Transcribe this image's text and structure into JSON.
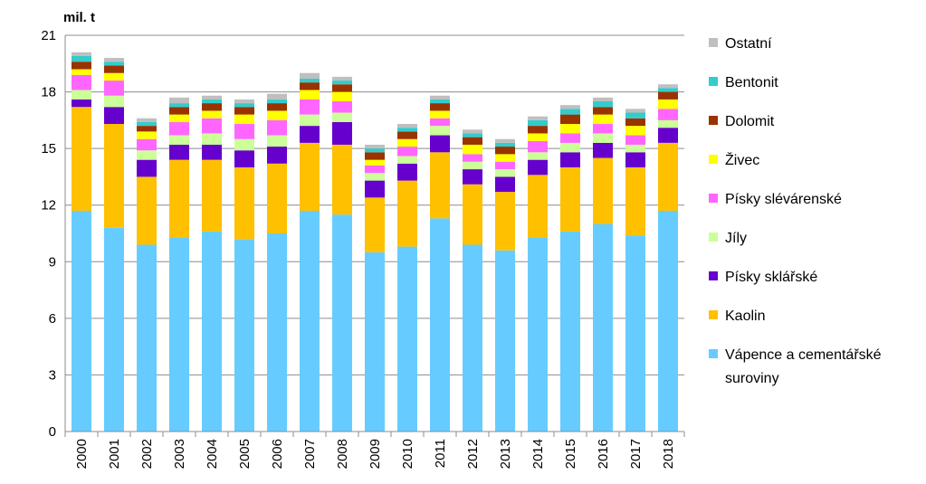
{
  "chart_data": {
    "type": "bar",
    "stacked": true,
    "unit_label": "mil. t",
    "categories": [
      "2000",
      "2001",
      "2002",
      "2003",
      "2004",
      "2005",
      "2006",
      "2007",
      "2008",
      "2009",
      "2010",
      "2011",
      "2012",
      "2013",
      "2014",
      "2015",
      "2016",
      "2017",
      "2018"
    ],
    "ylim": [
      0,
      21
    ],
    "yticks": [
      0,
      3,
      6,
      9,
      12,
      15,
      18,
      21
    ],
    "grid": true,
    "legend_position": "right",
    "series": [
      {
        "name": "Vápence a cementářské suroviny",
        "color": "#66ccff",
        "values": [
          11.7,
          10.8,
          9.9,
          10.3,
          10.6,
          10.2,
          10.5,
          11.7,
          11.5,
          9.5,
          9.8,
          11.3,
          9.9,
          9.6,
          10.3,
          10.6,
          11.0,
          10.4,
          11.7
        ]
      },
      {
        "name": "Kaolin",
        "color": "#ffc000",
        "values": [
          5.5,
          5.5,
          3.6,
          4.1,
          3.8,
          3.8,
          3.7,
          3.6,
          3.7,
          2.9,
          3.5,
          3.5,
          3.2,
          3.1,
          3.3,
          3.4,
          3.5,
          3.6,
          3.6
        ]
      },
      {
        "name": "Písky sklářské",
        "color": "#6600cc",
        "values": [
          0.4,
          0.9,
          0.9,
          0.8,
          0.8,
          0.9,
          0.9,
          0.9,
          1.2,
          0.9,
          0.9,
          0.9,
          0.8,
          0.8,
          0.8,
          0.8,
          0.8,
          0.8,
          0.8
        ]
      },
      {
        "name": "Jíly",
        "color": "#ccff99",
        "values": [
          0.5,
          0.6,
          0.5,
          0.5,
          0.6,
          0.6,
          0.6,
          0.6,
          0.5,
          0.4,
          0.4,
          0.5,
          0.4,
          0.4,
          0.4,
          0.5,
          0.5,
          0.4,
          0.4
        ]
      },
      {
        "name": "Písky slévárenské",
        "color": "#ff66ff",
        "values": [
          0.8,
          0.8,
          0.6,
          0.7,
          0.8,
          0.8,
          0.8,
          0.8,
          0.6,
          0.4,
          0.5,
          0.4,
          0.4,
          0.4,
          0.6,
          0.5,
          0.5,
          0.5,
          0.6
        ]
      },
      {
        "name": "Živec",
        "color": "#ffff00",
        "values": [
          0.3,
          0.4,
          0.4,
          0.4,
          0.4,
          0.5,
          0.5,
          0.5,
          0.5,
          0.3,
          0.4,
          0.4,
          0.5,
          0.4,
          0.4,
          0.5,
          0.5,
          0.5,
          0.5
        ]
      },
      {
        "name": "Dolomit",
        "color": "#993300",
        "values": [
          0.4,
          0.4,
          0.3,
          0.4,
          0.4,
          0.4,
          0.4,
          0.4,
          0.4,
          0.4,
          0.4,
          0.4,
          0.4,
          0.4,
          0.4,
          0.5,
          0.4,
          0.4,
          0.4
        ]
      },
      {
        "name": "Bentonit",
        "color": "#33cccc",
        "values": [
          0.3,
          0.2,
          0.2,
          0.2,
          0.2,
          0.2,
          0.2,
          0.2,
          0.2,
          0.2,
          0.2,
          0.2,
          0.2,
          0.2,
          0.3,
          0.3,
          0.3,
          0.3,
          0.2
        ]
      },
      {
        "name": "Ostatní",
        "color": "#bfbfbf",
        "values": [
          0.2,
          0.2,
          0.2,
          0.3,
          0.2,
          0.2,
          0.3,
          0.3,
          0.2,
          0.2,
          0.2,
          0.2,
          0.2,
          0.2,
          0.2,
          0.2,
          0.2,
          0.2,
          0.2
        ]
      }
    ],
    "legend_order": [
      "Ostatní",
      "Bentonit",
      "Dolomit",
      "Živec",
      "Písky slévárenské",
      "Jíly",
      "Písky sklářské",
      "Kaolin",
      "Vápence a cementářské suroviny"
    ],
    "legend_lines": [
      [
        "Ostatní"
      ],
      [
        "Bentonit"
      ],
      [
        "Dolomit"
      ],
      [
        "Živec"
      ],
      [
        "Písky slévárenské"
      ],
      [
        "Jíly"
      ],
      [
        "Písky sklářské"
      ],
      [
        "Kaolin"
      ],
      [
        "Vápence a cementářské",
        "suroviny"
      ]
    ]
  }
}
